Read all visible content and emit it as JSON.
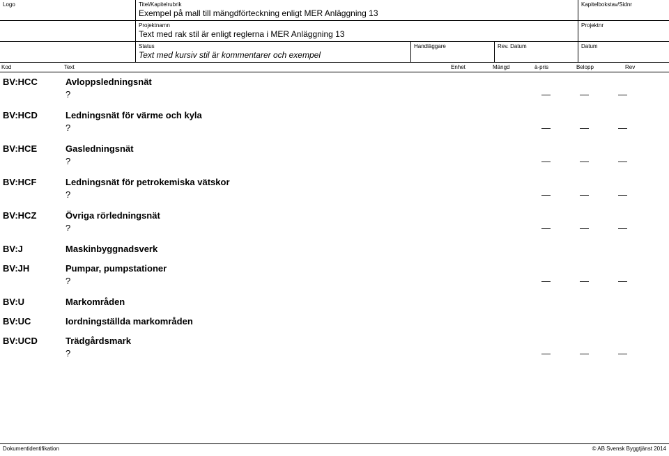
{
  "header": {
    "logo_label": "Logo",
    "titel_label": "Titel/Kapitelrubrik",
    "titel_value": "Exempel på mall till mängdförteckning enligt MER Anläggning 13",
    "kapitel_label": "Kapitelbokstav/Sidnr",
    "projektnamn_label": "Projektnamn",
    "projektnamn_value": "Text med rak stil är enligt reglerna i MER Anläggning 13",
    "projektnr_label": "Projektnr",
    "status_label": "Status",
    "status_value": "Text med kursiv stil är kommentarer och exempel",
    "handlaggare_label": "Handläggare",
    "revdatum_label": "Rev. Datum",
    "datum_label": "Datum"
  },
  "columns": {
    "kod": "Kod",
    "text": "Text",
    "enhet": "Enhet",
    "mangd": "Mängd",
    "apris": "à-pris",
    "belopp": "Belopp",
    "rev": "Rev"
  },
  "rows": [
    {
      "kod": "BV:HCC",
      "text": "Avloppsledningsnät",
      "sub": "?",
      "dashes": true
    },
    {
      "kod": "BV:HCD",
      "text": "Ledningsnät för värme och kyla",
      "sub": "?",
      "dashes": true
    },
    {
      "kod": "BV:HCE",
      "text": "Gasledningsnät",
      "sub": "?",
      "dashes": true
    },
    {
      "kod": "BV:HCF",
      "text": "Ledningsnät för petrokemiska vätskor",
      "sub": "?",
      "dashes": true
    },
    {
      "kod": "BV:HCZ",
      "text": "Övriga rörledningsnät",
      "sub": "?",
      "dashes": true
    },
    {
      "kod": "BV:J",
      "text": "Maskinbyggnadsverk",
      "sub": null,
      "dashes": false
    },
    {
      "kod": "BV:JH",
      "text": "Pumpar, pumpstationer",
      "sub": "?",
      "dashes": true
    },
    {
      "kod": "BV:U",
      "text": "Markområden",
      "sub": null,
      "dashes": false
    },
    {
      "kod": "BV:UC",
      "text": "Iordningställda markområden",
      "sub": null,
      "dashes": false
    },
    {
      "kod": "BV:UCD",
      "text": "Trädgårdsmark",
      "sub": "?",
      "dashes": true
    }
  ],
  "footer": {
    "left": "Dokumentidentifikation",
    "right": "© AB Svensk Byggtjänst 2014"
  },
  "dash": "—"
}
